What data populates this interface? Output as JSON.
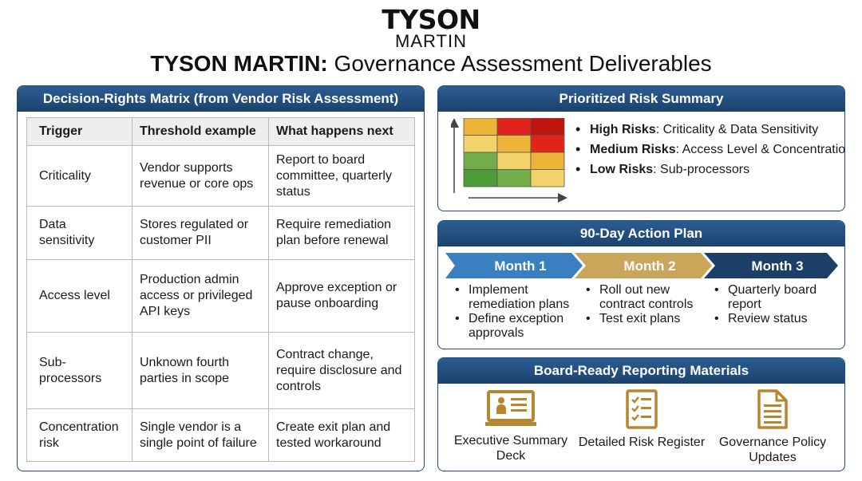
{
  "header": {
    "logo_top": "TYSON",
    "logo_bottom": "MARTIN",
    "title_brand": "TYSON MARTIN:",
    "title_rest": " Governance Assessment Deliverables"
  },
  "matrix": {
    "title": "Decision-Rights Matrix (from Vendor Risk Assessment)",
    "columns": [
      "Trigger",
      "Threshold example",
      "What happens next"
    ],
    "rows": [
      {
        "trigger": "Criticality",
        "threshold": "Vendor supports revenue or core ops",
        "next": "Report to board committee, quarterly status"
      },
      {
        "trigger": "Data sensitivity",
        "threshold": "Stores regulated or customer PII",
        "next": "Require remediation plan before renewal"
      },
      {
        "trigger": "Access level",
        "threshold": "Production admin access or privileged API keys",
        "next": "Approve exception or pause onboarding"
      },
      {
        "trigger": "Sub-processors",
        "threshold": "Unknown fourth parties in scope",
        "next": "Contract change, require disclosure and controls"
      },
      {
        "trigger": "Concentration risk",
        "threshold": "Single vendor is a single point of failure",
        "next": "Create exit plan and tested workaround"
      }
    ]
  },
  "risk": {
    "title": "Prioritized Risk Summary",
    "items": [
      {
        "level": "High Risks",
        "detail": ": Criticality & Data Sensitivity"
      },
      {
        "level": "Medium Risks",
        "detail": ": Access Level & Concentration"
      },
      {
        "level": "Low Risks",
        "detail": ": Sub-processors"
      }
    ],
    "heatmap_colors": [
      [
        "#eeb43a",
        "#e0231b",
        "#c0150f"
      ],
      [
        "#f2d36a",
        "#eeb43a",
        "#e0231b"
      ],
      [
        "#72ad4a",
        "#f2d36a",
        "#eeb43a"
      ],
      [
        "#4e9b3a",
        "#72ad4a",
        "#f2d36a"
      ]
    ]
  },
  "plan": {
    "title": "90-Day Action Plan",
    "months": [
      {
        "label": "Month 1",
        "color": "#3a7fc0",
        "items": [
          "Implement remediation plans",
          "Define exception approvals"
        ]
      },
      {
        "label": "Month 2",
        "color": "#c9a65a",
        "items": [
          "Roll out new contract controls",
          "Test exit plans"
        ]
      },
      {
        "label": "Month 3",
        "color": "#1c3f6a",
        "items": [
          "Quarterly board report",
          "Review status"
        ]
      }
    ]
  },
  "report": {
    "title": "Board-Ready Reporting Materials",
    "accent": "#b8862f",
    "items": [
      {
        "label": "Executive Summary Deck",
        "icon": "presentation-icon"
      },
      {
        "label": "Detailed Risk Register",
        "icon": "checklist-icon"
      },
      {
        "label": "Governance Policy Updates",
        "icon": "document-icon"
      }
    ]
  }
}
